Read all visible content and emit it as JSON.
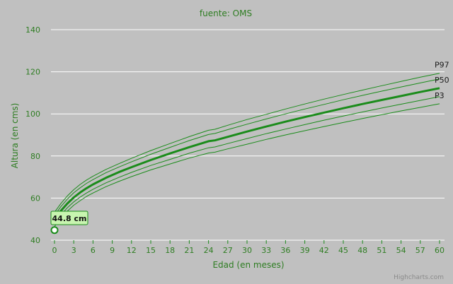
{
  "chart_data": {
    "type": "line",
    "title": "fuente: OMS",
    "xlabel": "Edad (en meses)",
    "ylabel": "Altura (en cms)",
    "xlim": [
      0,
      60
    ],
    "ylim": [
      40,
      140
    ],
    "x_ticks": [
      0,
      3,
      6,
      9,
      12,
      15,
      18,
      21,
      24,
      27,
      30,
      33,
      36,
      39,
      42,
      45,
      48,
      51,
      54,
      57,
      60
    ],
    "y_ticks": [
      40,
      60,
      80,
      100,
      120,
      140
    ],
    "grid": "horizontal",
    "x": [
      0,
      1,
      2,
      3,
      4,
      5,
      6,
      8,
      10,
      12,
      15,
      18,
      21,
      24,
      25,
      27,
      30,
      33,
      36,
      39,
      42,
      45,
      48,
      51,
      54,
      57,
      60
    ],
    "series": [
      {
        "name": "P97",
        "values": [
          53.3,
          57.5,
          61.0,
          64.0,
          66.5,
          68.6,
          70.4,
          73.6,
          76.3,
          78.9,
          82.6,
          85.9,
          89.2,
          92.2,
          92.7,
          94.6,
          97.3,
          99.8,
          102.3,
          104.7,
          107.0,
          109.2,
          111.3,
          113.4,
          115.4,
          117.4,
          119.3
        ]
      },
      {
        "name": "",
        "values": [
          51.8,
          56.0,
          59.5,
          62.5,
          64.9,
          67.0,
          68.8,
          72.0,
          74.7,
          77.2,
          80.8,
          84.1,
          87.3,
          90.2,
          90.7,
          92.5,
          95.1,
          97.6,
          100.0,
          102.3,
          104.5,
          106.7,
          108.8,
          110.8,
          112.8,
          114.7,
          116.6
        ]
      },
      {
        "name": "P50",
        "values": [
          49.9,
          54.0,
          57.4,
          60.3,
          62.7,
          64.7,
          66.5,
          69.6,
          72.3,
          74.7,
          78.1,
          81.2,
          84.2,
          87.0,
          87.4,
          89.1,
          91.6,
          94.0,
          96.3,
          98.5,
          100.6,
          102.7,
          104.7,
          106.6,
          108.5,
          110.4,
          112.2
        ]
      },
      {
        "name": "",
        "values": [
          48.0,
          52.0,
          55.4,
          58.2,
          60.5,
          62.4,
          64.2,
          67.2,
          69.8,
          72.2,
          75.5,
          78.4,
          81.3,
          83.9,
          84.3,
          85.9,
          88.3,
          90.6,
          92.8,
          94.9,
          97.0,
          99.0,
          100.9,
          102.8,
          104.6,
          106.4,
          108.2
        ]
      },
      {
        "name": "P3",
        "values": [
          46.5,
          50.5,
          53.8,
          56.6,
          58.8,
          60.8,
          62.4,
          65.4,
          67.9,
          70.2,
          73.4,
          76.2,
          79.0,
          81.4,
          81.8,
          83.4,
          85.6,
          87.9,
          90.0,
          92.0,
          94.0,
          95.9,
          97.8,
          99.6,
          101.4,
          103.1,
          104.8
        ]
      }
    ],
    "point": {
      "x": 0,
      "y": 44.8,
      "label": "44.8 cm"
    },
    "credits": "Highcharts.com"
  },
  "colors": {
    "background": "#c0c0c0",
    "line": "#1b8c1b",
    "text": "#2e7d22",
    "grid": "#ffffff",
    "tooltip_bg": "#c8f5b0"
  }
}
